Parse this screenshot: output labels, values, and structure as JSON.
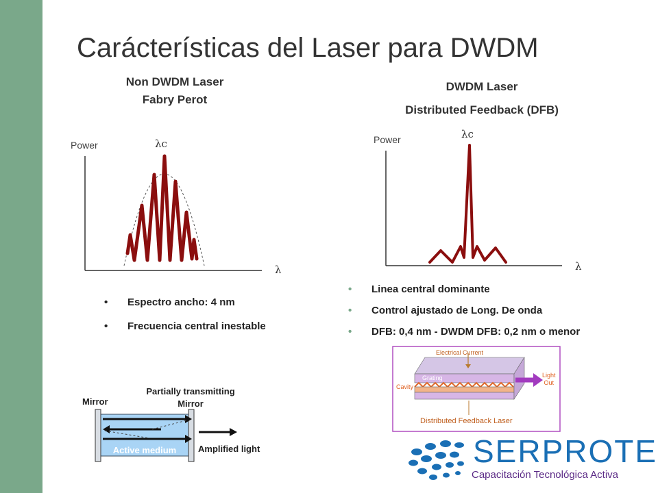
{
  "slide": {
    "title": "Carácterísticas del Laser para DWDM",
    "accent_color": "#7aa88a"
  },
  "left": {
    "heading_line1": "Non DWDM Laser",
    "heading_line2": "Fabry Perot",
    "y_label": "Power",
    "peak_label": "λc",
    "x_label": "λ",
    "bullets": [
      "Espectro ancho: 4 nm",
      "Frecuencia central inestable"
    ],
    "spectrum_color": "#8b0e0e"
  },
  "right": {
    "heading_line1": "DWDM Laser",
    "heading_line2": "Distributed Feedback (DFB)",
    "y_label": "Power",
    "peak_label": "λc",
    "x_label": "λ",
    "bullets": [
      "Linea central dominante",
      "Control ajustado de Long. De onda",
      "DFB: 0,4 nm  - DWDM DFB: 0,2 nm o menor"
    ],
    "spectrum_color": "#8b0e0e"
  },
  "cavity_diagram": {
    "mirror_label": "Mirror",
    "partial_mirror_line1": "Partially transmitting",
    "partial_mirror_line2": "Mirror",
    "medium_label": "Active medium",
    "output_label": "Amplified  light"
  },
  "dfb_diagram": {
    "electrical_label": "Electrical Current",
    "grating_label": "Grating",
    "cavity_label": "Cavity",
    "light_label_line1": "Light",
    "light_label_line2": "Out",
    "caption": "Distributed Feedback Laser",
    "accent_color": "#b04fc0"
  },
  "logo": {
    "name": "SERPROTEL",
    "tagline": "Capacitación Tecnológica Activa",
    "primary_color": "#1a6fb5",
    "secondary_color": "#5b2a86"
  }
}
